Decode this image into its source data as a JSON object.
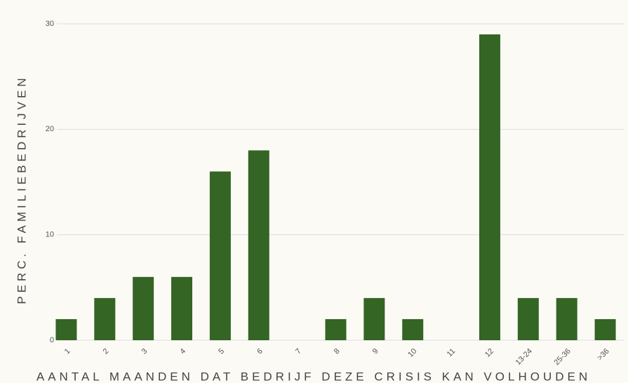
{
  "chart_data": {
    "type": "bar",
    "categories": [
      "1",
      "2",
      "3",
      "4",
      "5",
      "6",
      "7",
      "8",
      "9",
      "10",
      "11",
      "12",
      "13-24",
      "25-36",
      ">36"
    ],
    "values": [
      2,
      4,
      6,
      6,
      16,
      18,
      0,
      2,
      4,
      2,
      0,
      29,
      4,
      4,
      2
    ],
    "color": "#346524",
    "xlabel": "AANTAL MAANDEN DAT BEDRIJF DEZE CRISIS KAN VOLHOUDEN",
    "ylabel": "PERC. FAMILIEBEDRIJVEN",
    "ylim": [
      0,
      30
    ],
    "yticks": [
      0,
      10,
      20,
      30
    ],
    "grid": true
  }
}
